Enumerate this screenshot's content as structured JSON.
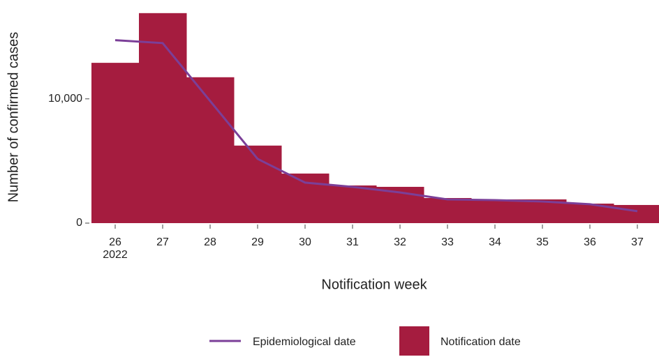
{
  "chart_data": {
    "type": "bar",
    "x": [
      26,
      27,
      28,
      29,
      30,
      31,
      32,
      33,
      34,
      35,
      36,
      37
    ],
    "year_label": "2022",
    "xlim": [
      25.5,
      37.5
    ],
    "ylim": [
      0,
      17900
    ],
    "yticks": [
      0,
      {
        "value": 10000,
        "label": "10,000"
      }
    ],
    "x_label": "Notification week",
    "y_label": "Number of confirmed cases",
    "series": [
      {
        "name": "Epidemiological date",
        "type": "line",
        "color": "#7b3f98",
        "values": [
          14720,
          14490,
          9830,
          5170,
          3260,
          2920,
          2470,
          1910,
          1850,
          1740,
          1520,
          960
        ]
      },
      {
        "name": "Notification date",
        "type": "bar",
        "color": "#a51c3f",
        "values": [
          12900,
          16900,
          11740,
          6240,
          3990,
          3030,
          2920,
          2020,
          1910,
          1910,
          1570,
          1460
        ]
      }
    ]
  }
}
